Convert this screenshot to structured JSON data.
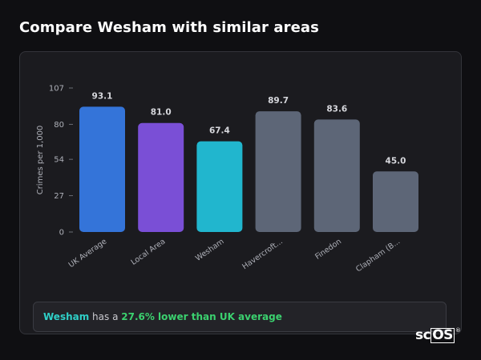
{
  "page": {
    "title": "Compare Wesham with similar areas"
  },
  "chart_data": {
    "type": "bar",
    "ylabel": "Crimes per 1,000",
    "xlabel": "",
    "ylim": [
      0,
      107
    ],
    "yticks": [
      0,
      27,
      54,
      80,
      107
    ],
    "categories": [
      "UK Average",
      "Local Area",
      "Wesham",
      "Havercroft...",
      "Finedon",
      "Clapham (B..."
    ],
    "values": [
      93.1,
      81.0,
      67.4,
      89.7,
      83.6,
      45.0
    ],
    "value_labels": [
      "93.1",
      "81.0",
      "67.4",
      "89.7",
      "83.6",
      "45.0"
    ],
    "colors": [
      "#3474d9",
      "#7a4fd6",
      "#21b6ce",
      "#5d6677",
      "#5d6677",
      "#5d6677"
    ],
    "grid": false
  },
  "summary": {
    "location": "Wesham",
    "middle": " has a ",
    "highlight": "27.6% lower than UK average"
  },
  "brand": {
    "prefix": "sc",
    "boxed": "OS",
    "mark": "®"
  }
}
